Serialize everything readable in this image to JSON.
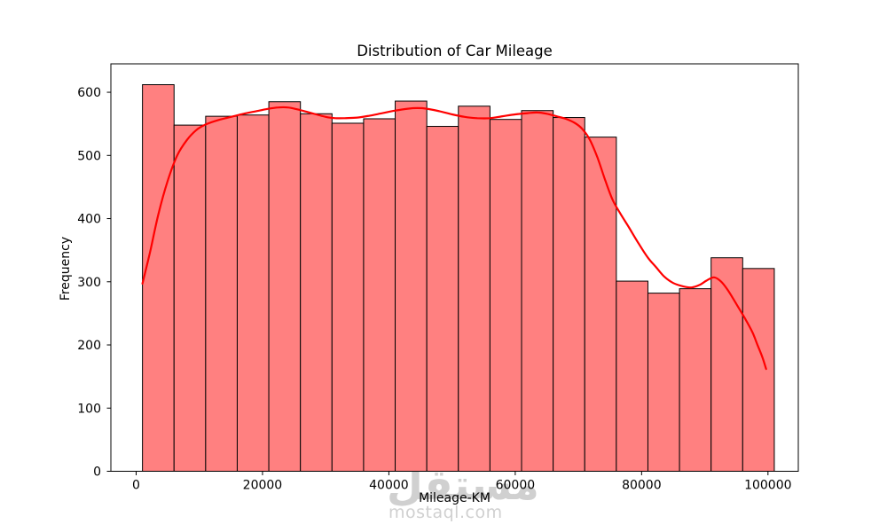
{
  "figure": {
    "background": "#ffffff",
    "watermark": {
      "logo": "مستقل",
      "domain": "mostaql.com",
      "color": "#d0d0d0"
    }
  },
  "chart_data": {
    "type": "bar",
    "subtype": "histogram_with_kde",
    "title": "Distribution of Car Mileage",
    "xlabel": "Mileage-KM",
    "ylabel": "Frequency",
    "grid": false,
    "legend": false,
    "xlim": [
      -4000,
      104800
    ],
    "ylim": [
      0,
      645
    ],
    "bar_fill": "#ff8080",
    "bar_edge": "#000000",
    "kde_color": "#ff0000",
    "bin_start": 1000,
    "bin_width": 5000,
    "bin_counts": [
      612,
      548,
      562,
      564,
      585,
      566,
      551,
      558,
      586,
      546,
      578,
      557,
      571,
      560,
      529,
      301,
      282,
      289,
      338,
      321
    ],
    "xticks": [
      0,
      20000,
      40000,
      60000,
      80000,
      100000
    ],
    "xtick_labels": [
      "0",
      "20000",
      "40000",
      "60000",
      "80000",
      "100000"
    ],
    "yticks": [
      0,
      100,
      200,
      300,
      400,
      500,
      600
    ],
    "ytick_labels": [
      "0",
      "100",
      "200",
      "300",
      "400",
      "500",
      "600"
    ],
    "kde_points": [
      [
        1000,
        297
      ],
      [
        2200,
        347
      ],
      [
        3500,
        406
      ],
      [
        5000,
        460
      ],
      [
        6500,
        500
      ],
      [
        8000,
        524
      ],
      [
        9500,
        540
      ],
      [
        11000,
        549
      ],
      [
        13000,
        556
      ],
      [
        15000,
        561
      ],
      [
        17000,
        566
      ],
      [
        19000,
        570
      ],
      [
        21000,
        574
      ],
      [
        22500,
        576
      ],
      [
        24000,
        576
      ],
      [
        25500,
        573
      ],
      [
        27000,
        569
      ],
      [
        28500,
        565
      ],
      [
        30000,
        561
      ],
      [
        31500,
        559
      ],
      [
        33000,
        559
      ],
      [
        35000,
        560
      ],
      [
        37000,
        563
      ],
      [
        39000,
        567
      ],
      [
        41000,
        571
      ],
      [
        43000,
        574
      ],
      [
        44500,
        575
      ],
      [
        46000,
        574
      ],
      [
        48000,
        570
      ],
      [
        50000,
        565
      ],
      [
        52000,
        561
      ],
      [
        54000,
        559
      ],
      [
        56000,
        559
      ],
      [
        58000,
        562
      ],
      [
        60000,
        565
      ],
      [
        62000,
        567
      ],
      [
        63500,
        568
      ],
      [
        65000,
        566
      ],
      [
        66500,
        562
      ],
      [
        68000,
        558
      ],
      [
        69500,
        551
      ],
      [
        70600,
        542
      ],
      [
        71800,
        525
      ],
      [
        73000,
        497
      ],
      [
        74200,
        462
      ],
      [
        75400,
        430
      ],
      [
        76700,
        407
      ],
      [
        78000,
        386
      ],
      [
        79500,
        361
      ],
      [
        81000,
        338
      ],
      [
        82300,
        323
      ],
      [
        83600,
        308
      ],
      [
        85000,
        298
      ],
      [
        86500,
        293
      ],
      [
        87900,
        291
      ],
      [
        89200,
        295
      ],
      [
        90300,
        302
      ],
      [
        91450,
        307
      ],
      [
        92500,
        301
      ],
      [
        93560,
        288
      ],
      [
        94800,
        268
      ],
      [
        96300,
        243
      ],
      [
        97500,
        221
      ],
      [
        98300,
        201
      ],
      [
        99100,
        181
      ],
      [
        99700,
        162
      ]
    ]
  }
}
